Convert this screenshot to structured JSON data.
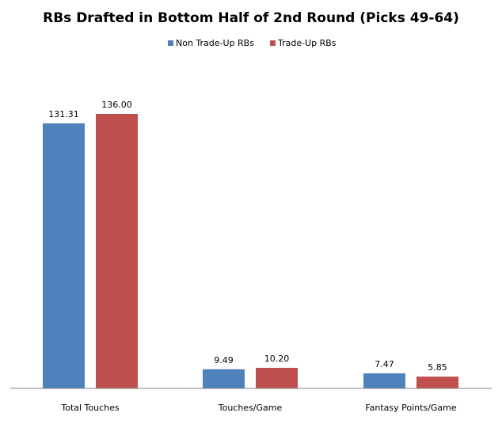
{
  "chart_data": {
    "type": "bar",
    "title": "RBs Drafted in Bottom Half of 2nd Round (Picks 49-64)",
    "categories": [
      "Total Touches",
      "Touches/Game",
      "Fantasy Points/Game"
    ],
    "series": [
      {
        "name": "Non Trade-Up RBs",
        "color": "#4F81BD",
        "values": [
          131.31,
          9.49,
          7.47
        ],
        "labels": [
          "131.31",
          "9.49",
          "7.47"
        ]
      },
      {
        "name": "Trade-Up RBs",
        "color": "#C0504D",
        "values": [
          136.0,
          10.2,
          5.85
        ],
        "labels": [
          "136.00",
          "10.20",
          "5.85"
        ]
      }
    ],
    "ylim": [
      0,
      136.0
    ],
    "grid": false,
    "legend": "top-center",
    "axis_color": "#868686"
  }
}
